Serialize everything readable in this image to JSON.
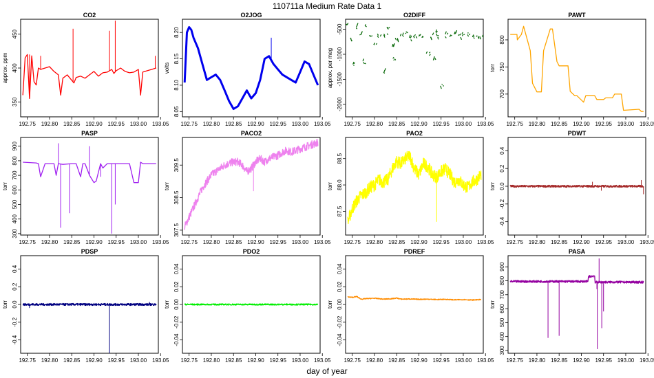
{
  "figure": {
    "title": "110711a   Medium Rate Data 1",
    "xlabel": "day of year"
  },
  "chart_data": [
    {
      "name": "CO2",
      "type": "line",
      "title": "CO2",
      "ylabel": "approx. ppm",
      "color": "#ff0000",
      "xlim": [
        192.735,
        193.045
      ],
      "ylim": [
        328,
        472
      ],
      "xticks": [
        "192.75",
        "192.80",
        "192.85",
        "192.90",
        "192.95",
        "193.00",
        "193.05"
      ],
      "yticks": [
        "350",
        "400",
        "450"
      ],
      "x": [
        192.74,
        192.745,
        192.75,
        192.755,
        192.76,
        192.765,
        192.77,
        192.775,
        192.78,
        192.79,
        192.8,
        192.81,
        192.82,
        192.825,
        192.83,
        192.84,
        192.85,
        192.855,
        192.86,
        192.87,
        192.88,
        192.89,
        192.9,
        192.91,
        192.92,
        192.93,
        192.94,
        192.945,
        192.95,
        192.96,
        192.97,
        192.98,
        192.99,
        193.0,
        193.005,
        193.01,
        193.02,
        193.03,
        193.04
      ],
      "y": [
        360,
        415,
        420,
        355,
        418,
        380,
        375,
        400,
        398,
        400,
        402,
        395,
        390,
        360,
        385,
        390,
        382,
        378,
        386,
        388,
        385,
        390,
        395,
        388,
        393,
        394,
        398,
        392,
        396,
        400,
        395,
        393,
        394,
        398,
        360,
        394,
        396,
        398,
        400
      ],
      "spikes": [
        [
          192.755,
          420
        ],
        [
          192.78,
          418
        ],
        [
          192.853,
          458
        ],
        [
          192.935,
          455
        ],
        [
          192.948,
          470
        ],
        [
          193.038,
          418
        ]
      ]
    },
    {
      "name": "O2JOG",
      "type": "line",
      "title": "O2JOG",
      "ylabel": "volts",
      "color": "#0000ee",
      "xlim": [
        192.735,
        193.045
      ],
      "ylim": [
        8.04,
        8.225
      ],
      "xticks": [
        "192.75",
        "192.80",
        "192.85",
        "192.90",
        "192.95",
        "193.00",
        "193.05"
      ],
      "yticks": [
        "8.05",
        "8.10",
        "8.15",
        "8.20"
      ],
      "x": [
        192.74,
        192.745,
        192.75,
        192.755,
        192.76,
        192.77,
        192.78,
        192.79,
        192.8,
        192.81,
        192.82,
        192.83,
        192.84,
        192.85,
        192.86,
        192.87,
        192.88,
        192.89,
        192.9,
        192.91,
        192.92,
        192.93,
        192.94,
        192.95,
        192.96,
        192.97,
        192.98,
        192.99,
        193.0,
        193.01,
        193.02,
        193.03,
        193.04
      ],
      "y": [
        8.105,
        8.2,
        8.21,
        8.205,
        8.19,
        8.17,
        8.14,
        8.11,
        8.115,
        8.12,
        8.11,
        8.09,
        8.07,
        8.055,
        8.06,
        8.075,
        8.09,
        8.075,
        8.085,
        8.11,
        8.15,
        8.155,
        8.14,
        8.13,
        8.12,
        8.115,
        8.11,
        8.105,
        8.125,
        8.145,
        8.14,
        8.12,
        8.1
      ],
      "spikes": [
        [
          192.935,
          8.19
        ]
      ]
    },
    {
      "name": "O2DIFF",
      "type": "scatter",
      "title": "O2DIFF",
      "ylabel": "approx. per meg",
      "color": "#006400",
      "xlim": [
        192.735,
        193.045
      ],
      "ylim": [
        -2250,
        -300
      ],
      "xticks": [
        "192.75",
        "192.80",
        "192.85",
        "192.90",
        "192.95",
        "193.00",
        "193.05"
      ],
      "yticks": [
        "-2000",
        "-1500",
        "-1000",
        "-500"
      ],
      "x": [
        192.74,
        192.745,
        192.75,
        192.76,
        192.77,
        192.775,
        192.78,
        192.79,
        192.8,
        192.81,
        192.82,
        192.825,
        192.83,
        192.84,
        192.845,
        192.85,
        192.86,
        192.87,
        192.88,
        192.89,
        192.9,
        192.91,
        192.92,
        192.93,
        192.935,
        192.94,
        192.945,
        192.95,
        192.96,
        192.97,
        192.98,
        192.99,
        193.0,
        193.01,
        193.02,
        193.03,
        193.04
      ],
      "y": [
        -420,
        -700,
        -1200,
        -450,
        -600,
        -1150,
        -420,
        -650,
        -800,
        -620,
        -1350,
        -600,
        -480,
        -820,
        -1100,
        -700,
        -650,
        -560,
        -700,
        -640,
        -620,
        -650,
        -1000,
        -630,
        -1100,
        -580,
        -650,
        -1600,
        -620,
        -640,
        -600,
        -650,
        -620,
        -600,
        -640,
        -620,
        -650
      ]
    },
    {
      "name": "PAWT",
      "type": "line",
      "title": "PAWT",
      "ylabel": "torr",
      "color": "#ffa500",
      "xlim": [
        192.735,
        193.045
      ],
      "ylim": [
        658,
        838
      ],
      "xticks": [
        "192.75",
        "192.80",
        "192.85",
        "192.90",
        "192.95",
        "193.00",
        "193.05"
      ],
      "yticks": [
        "700",
        "750",
        "800"
      ],
      "x": [
        192.74,
        192.755,
        192.756,
        192.765,
        192.77,
        192.785,
        192.79,
        192.8,
        192.81,
        192.815,
        192.83,
        192.835,
        192.845,
        192.85,
        192.855,
        192.87,
        192.875,
        192.885,
        192.89,
        192.905,
        192.91,
        192.93,
        192.935,
        192.95,
        192.955,
        192.97,
        192.975,
        192.99,
        192.995,
        193.03,
        193.035,
        193.04
      ],
      "y": [
        810,
        810,
        800,
        810,
        825,
        780,
        720,
        704,
        704,
        780,
        820,
        820,
        760,
        752,
        752,
        752,
        705,
        697,
        697,
        685,
        697,
        697,
        690,
        690,
        693,
        693,
        700,
        700,
        670,
        672,
        668,
        668
      ]
    },
    {
      "name": "PASP",
      "type": "line",
      "title": "PASP",
      "ylabel": "torr",
      "color": "#a020f0",
      "xlim": [
        192.735,
        193.045
      ],
      "ylim": [
        290,
        960
      ],
      "xticks": [
        "192.75",
        "192.80",
        "192.85",
        "192.90",
        "192.95",
        "193.00",
        "193.05"
      ],
      "yticks": [
        "300",
        "400",
        "500",
        "600",
        "700",
        "800",
        "900"
      ],
      "x": [
        192.74,
        192.77,
        192.775,
        192.78,
        192.79,
        192.81,
        192.815,
        192.82,
        192.83,
        192.85,
        192.86,
        192.87,
        192.875,
        192.88,
        192.89,
        192.9,
        192.905,
        192.915,
        192.92,
        192.93,
        192.94,
        192.95,
        192.96,
        192.97,
        192.98,
        192.99,
        193.0,
        193.005,
        193.01,
        193.02,
        193.03,
        193.04
      ],
      "y": [
        790,
        785,
        780,
        690,
        780,
        780,
        700,
        780,
        775,
        780,
        780,
        690,
        780,
        780,
        700,
        650,
        660,
        780,
        750,
        780,
        780,
        780,
        780,
        780,
        780,
        650,
        650,
        790,
        780,
        780,
        780,
        780
      ],
      "spikes": [
        [
          192.825,
          340
        ],
        [
          192.845,
          440
        ],
        [
          192.915,
          690
        ],
        [
          192.94,
          300
        ],
        [
          192.948,
          500
        ],
        [
          192.82,
          920
        ],
        [
          192.89,
          900
        ]
      ]
    },
    {
      "name": "PACO2",
      "type": "line",
      "title": "PACO2",
      "ylabel": "torr",
      "color": "#ee82ee",
      "xlim": [
        192.735,
        193.045
      ],
      "ylim": [
        307.35,
        310.35
      ],
      "xticks": [
        "192.75",
        "192.80",
        "192.85",
        "192.90",
        "192.95",
        "193.00",
        "193.05"
      ],
      "yticks": [
        "307.5",
        "308.5",
        "309.5"
      ],
      "x": [
        192.74,
        192.75,
        192.76,
        192.77,
        192.78,
        192.79,
        192.8,
        192.81,
        192.82,
        192.83,
        192.84,
        192.85,
        192.86,
        192.87,
        192.88,
        192.89,
        192.9,
        192.91,
        192.92,
        192.93,
        192.94,
        192.95,
        192.96,
        192.97,
        192.98,
        192.99,
        193.0,
        193.01,
        193.02,
        193.03,
        193.04
      ],
      "y": [
        307.6,
        307.9,
        308.2,
        308.5,
        308.8,
        309.0,
        309.2,
        309.3,
        309.4,
        309.5,
        309.55,
        309.6,
        309.6,
        309.5,
        309.3,
        309.4,
        309.6,
        309.7,
        309.6,
        309.7,
        309.75,
        309.8,
        309.9,
        309.95,
        309.9,
        309.95,
        310.0,
        310.05,
        310.1,
        310.15,
        310.2
      ],
      "noise": 0.12,
      "spikes": [
        [
          192.895,
          308.7
        ]
      ]
    },
    {
      "name": "PAO2",
      "type": "line",
      "title": "PAO2",
      "ylabel": "torr",
      "color": "#ffff00",
      "xlim": [
        192.735,
        193.045
      ],
      "ylim": [
        87.05,
        88.9
      ],
      "xticks": [
        "192.75",
        "192.80",
        "192.85",
        "192.90",
        "192.95",
        "193.00",
        "193.05"
      ],
      "yticks": [
        "87.5",
        "88.0",
        "88.5"
      ],
      "x": [
        192.74,
        192.75,
        192.76,
        192.77,
        192.78,
        192.79,
        192.8,
        192.81,
        192.82,
        192.83,
        192.84,
        192.85,
        192.86,
        192.87,
        192.88,
        192.89,
        192.9,
        192.91,
        192.92,
        192.93,
        192.94,
        192.95,
        192.96,
        192.97,
        192.98,
        192.99,
        193.0,
        193.01,
        193.02,
        193.03,
        193.04
      ],
      "y": [
        87.3,
        87.55,
        87.7,
        87.8,
        87.85,
        87.95,
        88.0,
        88.1,
        88.05,
        88.1,
        88.3,
        88.45,
        88.4,
        88.5,
        88.55,
        88.3,
        88.2,
        88.4,
        88.35,
        88.2,
        88.15,
        88.25,
        88.3,
        88.2,
        88.05,
        88.1,
        88.0,
        87.95,
        88.05,
        88.1,
        88.2
      ],
      "noise": 0.12,
      "spikes": [
        [
          192.94,
          87.3
        ]
      ]
    },
    {
      "name": "PDWT",
      "type": "line",
      "title": "PDWT",
      "ylabel": "torr",
      "color": "#a52a2a",
      "xlim": [
        192.735,
        193.045
      ],
      "ylim": [
        -0.55,
        0.55
      ],
      "xticks": [
        "192.75",
        "192.80",
        "192.85",
        "192.90",
        "192.95",
        "193.00",
        "193.05"
      ],
      "yticks": [
        "-0.4",
        "-0.2",
        "0.0",
        "0.2",
        "0.4"
      ],
      "x": [
        192.74,
        193.04
      ],
      "y": [
        0.0,
        0.0
      ],
      "noise": 0.012,
      "spikes": [
        [
          192.925,
          0.05
        ],
        [
          192.945,
          -0.05
        ],
        [
          193.035,
          0.07
        ],
        [
          193.04,
          -0.09
        ]
      ]
    },
    {
      "name": "PDSP",
      "type": "line",
      "title": "PDSP",
      "ylabel": "torr",
      "color": "#000080",
      "xlim": [
        192.735,
        193.045
      ],
      "ylim": [
        -0.55,
        0.55
      ],
      "xticks": [
        "192.75",
        "192.80",
        "192.85",
        "192.90",
        "192.95",
        "193.00",
        "193.05"
      ],
      "yticks": [
        "-0.4",
        "-0.2",
        "0.0",
        "0.2",
        "0.4"
      ],
      "x": [
        192.74,
        193.04
      ],
      "y": [
        0.0,
        0.0
      ],
      "noise": 0.012,
      "spikes": [
        [
          192.935,
          -0.55
        ],
        [
          192.755,
          -0.04
        ],
        [
          193.025,
          0.03
        ]
      ]
    },
    {
      "name": "PDO2",
      "type": "line",
      "title": "PDO2",
      "ylabel": "torr",
      "color": "#00ee00",
      "xlim": [
        192.735,
        193.045
      ],
      "ylim": [
        -0.055,
        0.055
      ],
      "xticks": [
        "192.75",
        "192.80",
        "192.85",
        "192.90",
        "192.95",
        "193.00",
        "193.05"
      ],
      "yticks": [
        "-0.04",
        "-0.02",
        "0.00",
        "0.02",
        "0.04"
      ],
      "x": [
        192.74,
        193.04
      ],
      "y": [
        0.0,
        0.0
      ],
      "noise": 0.0008
    },
    {
      "name": "PDREF",
      "type": "line",
      "title": "PDREF",
      "ylabel": "torr",
      "color": "#ff8c00",
      "xlim": [
        192.735,
        193.045
      ],
      "ylim": [
        -0.055,
        0.055
      ],
      "xticks": [
        "192.75",
        "192.80",
        "192.85",
        "192.90",
        "192.95",
        "193.00",
        "193.05"
      ],
      "yticks": [
        "-0.04",
        "-0.02",
        "0.00",
        "0.02",
        "0.04"
      ],
      "x": [
        192.74,
        192.75,
        192.76,
        192.77,
        192.78,
        192.8,
        192.82,
        192.84,
        192.85,
        192.86,
        192.88,
        192.9,
        192.92,
        192.94,
        192.96,
        192.98,
        193.0,
        193.02,
        193.04
      ],
      "y": [
        0.0085,
        0.008,
        0.009,
        0.006,
        0.0065,
        0.007,
        0.006,
        0.0065,
        0.0072,
        0.006,
        0.0062,
        0.0058,
        0.006,
        0.0055,
        0.0058,
        0.0052,
        0.0055,
        0.005,
        0.0055
      ],
      "noise": 0.0005
    },
    {
      "name": "PASA",
      "type": "line",
      "title": "PASA",
      "ylabel": "torr",
      "color": "#9400a0",
      "xlim": [
        192.735,
        193.045
      ],
      "ylim": [
        280,
        980
      ],
      "xticks": [
        "192.75",
        "192.80",
        "192.85",
        "192.90",
        "192.95",
        "193.00",
        "193.05"
      ],
      "yticks": [
        "300",
        "400",
        "500",
        "600",
        "700",
        "800",
        "900"
      ],
      "x": [
        192.74,
        192.8,
        192.86,
        192.915,
        192.916,
        192.93,
        192.931,
        192.95,
        193.0,
        193.04
      ],
      "y": [
        795,
        795,
        795,
        795,
        830,
        835,
        790,
        790,
        790,
        790
      ],
      "noise": 8,
      "spikes": [
        [
          192.825,
          390
        ],
        [
          192.85,
          405
        ],
        [
          192.936,
          310
        ],
        [
          192.94,
          960
        ],
        [
          192.946,
          460
        ],
        [
          192.95,
          580
        ],
        [
          192.935,
          740
        ]
      ]
    }
  ]
}
